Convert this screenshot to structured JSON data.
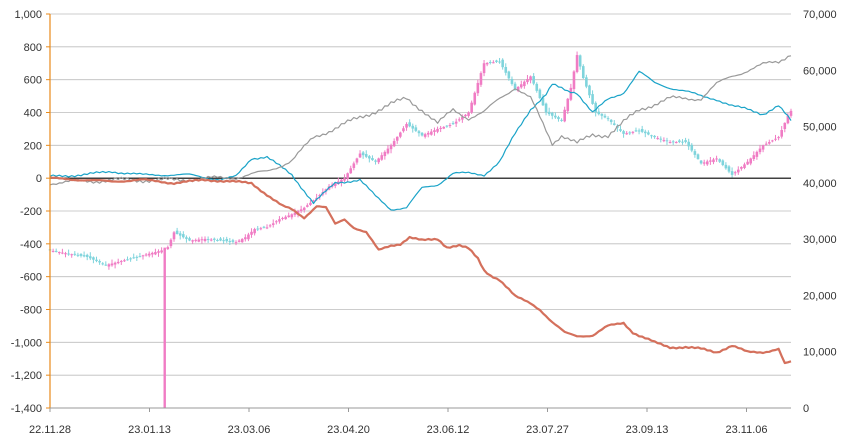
{
  "chart_data": {
    "type": "line",
    "title": "",
    "xlabel": "",
    "ylabel": "",
    "grid": true,
    "x_tick_labels": [
      "22.11.28",
      "23.01.13",
      "23.03.06",
      "23.04.20",
      "23.06.12",
      "23.07.27",
      "23.09.13",
      "23.11.06"
    ],
    "y_left": {
      "ylim": [
        -1400,
        1000
      ],
      "tick_values": [
        1000,
        800,
        600,
        400,
        200,
        0,
        -200,
        -400,
        -600,
        -800,
        -1000,
        -1200,
        -1400
      ],
      "tick_labels": [
        "1,000",
        "800",
        "600",
        "400",
        "200",
        "0",
        "-200",
        "-400",
        "-600",
        "-800",
        "-1,000",
        "-1,200",
        "-1,400"
      ]
    },
    "y_right": {
      "ylim": [
        0,
        70000
      ],
      "tick_values": [
        70000,
        60000,
        50000,
        40000,
        30000,
        20000,
        10000,
        0
      ],
      "tick_labels": [
        "70,000",
        "60,000",
        "50,000",
        "40,000",
        "30,000",
        "20,000",
        "10,000",
        "0"
      ]
    },
    "n_points": 240,
    "series": [
      {
        "type": "candlestick",
        "axis": "left",
        "color_up": "#f07cc4",
        "color_down": "#7fd4dc",
        "anchors": [
          [
            0,
            -440
          ],
          [
            6,
            -460
          ],
          [
            12,
            -480
          ],
          [
            18,
            -530
          ],
          [
            24,
            -500
          ],
          [
            30,
            -470
          ],
          [
            36,
            -440
          ],
          [
            38,
            -420
          ],
          [
            40,
            -330
          ],
          [
            45,
            -380
          ],
          [
            50,
            -370
          ],
          [
            55,
            -380
          ],
          [
            60,
            -390
          ],
          [
            63,
            -360
          ],
          [
            66,
            -310
          ],
          [
            70,
            -300
          ],
          [
            74,
            -250
          ],
          [
            78,
            -220
          ],
          [
            82,
            -180
          ],
          [
            86,
            -120
          ],
          [
            90,
            -50
          ],
          [
            95,
            0
          ],
          [
            100,
            150
          ],
          [
            105,
            100
          ],
          [
            110,
            200
          ],
          [
            115,
            330
          ],
          [
            120,
            260
          ],
          [
            125,
            300
          ],
          [
            130,
            330
          ],
          [
            135,
            400
          ],
          [
            140,
            700
          ],
          [
            145,
            710
          ],
          [
            150,
            540
          ],
          [
            155,
            620
          ],
          [
            160,
            400
          ],
          [
            165,
            350
          ],
          [
            168,
            550
          ],
          [
            170,
            750
          ],
          [
            172,
            610
          ],
          [
            176,
            400
          ],
          [
            180,
            360
          ],
          [
            185,
            270
          ],
          [
            190,
            290
          ],
          [
            195,
            250
          ],
          [
            200,
            220
          ],
          [
            205,
            220
          ],
          [
            210,
            90
          ],
          [
            215,
            120
          ],
          [
            220,
            20
          ],
          [
            225,
            100
          ],
          [
            230,
            200
          ],
          [
            235,
            250
          ],
          [
            238,
            380
          ],
          [
            239,
            410
          ]
        ],
        "spike": {
          "index": 37,
          "low": -1400
        }
      },
      {
        "type": "line",
        "axis": "left",
        "color": "#1aa3c8",
        "anchors": [
          [
            0,
            10
          ],
          [
            10,
            20
          ],
          [
            20,
            40
          ],
          [
            30,
            20
          ],
          [
            45,
            20
          ],
          [
            55,
            -10
          ],
          [
            60,
            10
          ],
          [
            65,
            120
          ],
          [
            70,
            130
          ],
          [
            78,
            20
          ],
          [
            85,
            -150
          ],
          [
            92,
            -30
          ],
          [
            100,
            -10
          ],
          [
            105,
            -110
          ],
          [
            110,
            -190
          ],
          [
            115,
            -180
          ],
          [
            120,
            -60
          ],
          [
            125,
            -40
          ],
          [
            130,
            30
          ],
          [
            135,
            30
          ],
          [
            140,
            20
          ],
          [
            145,
            100
          ],
          [
            150,
            270
          ],
          [
            155,
            420
          ],
          [
            160,
            510
          ],
          [
            162,
            570
          ],
          [
            167,
            530
          ],
          [
            170,
            520
          ],
          [
            175,
            400
          ],
          [
            180,
            480
          ],
          [
            185,
            520
          ],
          [
            190,
            650
          ],
          [
            195,
            580
          ],
          [
            200,
            550
          ],
          [
            205,
            530
          ],
          [
            210,
            500
          ],
          [
            215,
            480
          ],
          [
            220,
            440
          ],
          [
            225,
            420
          ],
          [
            230,
            390
          ],
          [
            235,
            440
          ],
          [
            239,
            350
          ]
        ]
      },
      {
        "type": "line",
        "axis": "right",
        "color": "#999999",
        "anchors": [
          [
            0,
            40000
          ],
          [
            20,
            40500
          ],
          [
            40,
            40500
          ],
          [
            60,
            41000
          ],
          [
            70,
            42000
          ],
          [
            78,
            44000
          ],
          [
            85,
            48000
          ],
          [
            95,
            50500
          ],
          [
            102,
            52000
          ],
          [
            110,
            54000
          ],
          [
            115,
            55000
          ],
          [
            120,
            53000
          ],
          [
            125,
            50500
          ],
          [
            130,
            53000
          ],
          [
            135,
            51500
          ],
          [
            140,
            52500
          ],
          [
            145,
            55000
          ],
          [
            150,
            57000
          ],
          [
            155,
            55000
          ],
          [
            162,
            47000
          ],
          [
            165,
            48500
          ],
          [
            170,
            47000
          ],
          [
            175,
            48500
          ],
          [
            180,
            48500
          ],
          [
            190,
            53000
          ],
          [
            200,
            55000
          ],
          [
            210,
            55000
          ],
          [
            215,
            57500
          ],
          [
            220,
            59000
          ],
          [
            230,
            61000
          ],
          [
            235,
            61500
          ],
          [
            239,
            63000
          ]
        ]
      },
      {
        "type": "line",
        "axis": "left",
        "color": "#d4705c",
        "thick": true,
        "anchors": [
          [
            0,
            0
          ],
          [
            20,
            -20
          ],
          [
            30,
            -10
          ],
          [
            40,
            -30
          ],
          [
            50,
            -10
          ],
          [
            58,
            -20
          ],
          [
            65,
            -30
          ],
          [
            72,
            -130
          ],
          [
            75,
            -170
          ],
          [
            78,
            -190
          ],
          [
            82,
            -240
          ],
          [
            86,
            -170
          ],
          [
            89,
            -180
          ],
          [
            92,
            -280
          ],
          [
            95,
            -250
          ],
          [
            98,
            -300
          ],
          [
            102,
            -330
          ],
          [
            106,
            -440
          ],
          [
            110,
            -410
          ],
          [
            113,
            -400
          ],
          [
            116,
            -360
          ],
          [
            120,
            -380
          ],
          [
            125,
            -370
          ],
          [
            128,
            -420
          ],
          [
            132,
            -410
          ],
          [
            135,
            -430
          ],
          [
            138,
            -490
          ],
          [
            140,
            -560
          ],
          [
            142,
            -590
          ],
          [
            145,
            -620
          ],
          [
            150,
            -720
          ],
          [
            155,
            -760
          ],
          [
            158,
            -800
          ],
          [
            162,
            -880
          ],
          [
            166,
            -940
          ],
          [
            170,
            -960
          ],
          [
            175,
            -960
          ],
          [
            180,
            -900
          ],
          [
            185,
            -880
          ],
          [
            188,
            -940
          ],
          [
            190,
            -960
          ],
          [
            195,
            -1000
          ],
          [
            200,
            -1030
          ],
          [
            205,
            -1030
          ],
          [
            210,
            -1040
          ],
          [
            215,
            -1060
          ],
          [
            220,
            -1020
          ],
          [
            225,
            -1060
          ],
          [
            230,
            -1060
          ],
          [
            235,
            -1040
          ],
          [
            237,
            -1130
          ],
          [
            239,
            -1120
          ]
        ]
      }
    ]
  }
}
